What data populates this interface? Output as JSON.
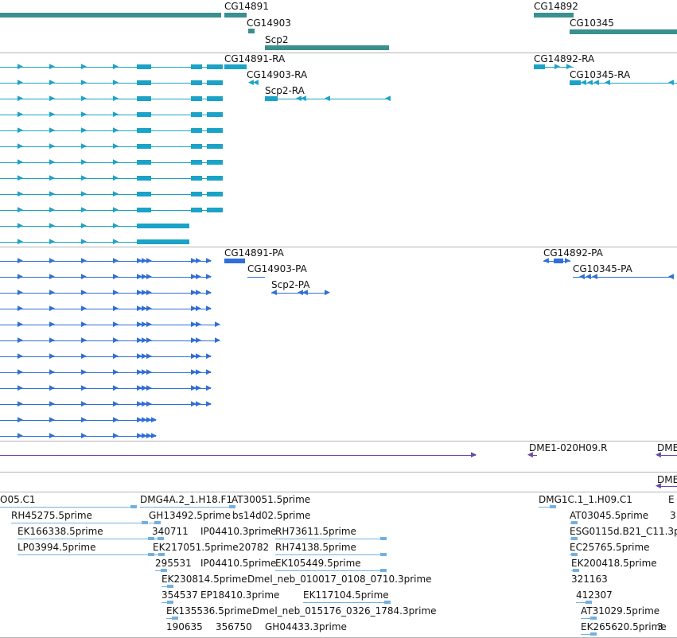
{
  "colors": {
    "gene": "#3a8f8f",
    "rna": "#1aa3c6",
    "protein": "#2f6fd6",
    "clone": "#6a4aa8",
    "est": "#74b0df",
    "separator": "#b5b5b5"
  },
  "tracks": {
    "genes": [
      {
        "label": ""
      },
      {
        "label": "CG14891"
      },
      {
        "label": "CG14903"
      },
      {
        "label": "Scp2"
      },
      {
        "label": "CG14892"
      },
      {
        "label": "CG10345"
      }
    ],
    "transcripts": [
      {
        "label": "CG14891-RA"
      },
      {
        "label": "CG14903-RA"
      },
      {
        "label": "Scp2-RA"
      },
      {
        "label": "CG14892-RA"
      },
      {
        "label": "CG10345-RA"
      }
    ],
    "proteins": [
      {
        "label": "CG14891-PA"
      },
      {
        "label": "CG14903-PA"
      },
      {
        "label": "Scp2-PA"
      },
      {
        "label": "CG14892-PA"
      },
      {
        "label": "CG10345-PA"
      }
    ],
    "clones": [
      {
        "label": "DME1-020H09.R"
      },
      {
        "label": "DME"
      },
      {
        "label": "DME"
      }
    ],
    "ests": [
      {
        "label": "O05.C1"
      },
      {
        "label": "DMG4A.2_1.H18.F1"
      },
      {
        "label": "AT30051.5prime"
      },
      {
        "label": "RH45275.5prime"
      },
      {
        "label": "GH13492.5prime"
      },
      {
        "label": "bs14d02.5prime"
      },
      {
        "label": "EK166338.5prime"
      },
      {
        "label": "340711"
      },
      {
        "label": "IP04410.3prime"
      },
      {
        "label": "RH73611.5prime"
      },
      {
        "label": "LP03994.5prime"
      },
      {
        "label": "EK217051.5prime"
      },
      {
        "label": "20782"
      },
      {
        "label": "RH74138.5prime"
      },
      {
        "label": "295531"
      },
      {
        "label": "IP04410.5prime"
      },
      {
        "label": "EK105449.5prime"
      },
      {
        "label": "EK230814.5prime"
      },
      {
        "label": "Dmel_neb_010017_0108_0710.3prime"
      },
      {
        "label": "354537"
      },
      {
        "label": "EP18410.3prime"
      },
      {
        "label": "EK117104.5prime"
      },
      {
        "label": "EK135536.5prime"
      },
      {
        "label": "Dmel_neb_015176_0326_1784.3prime"
      },
      {
        "label": "190635"
      },
      {
        "label": "356750"
      },
      {
        "label": "GH04433.3prime"
      },
      {
        "label": "DMG1C.1_1.H09.C1"
      },
      {
        "label": "E"
      },
      {
        "label": "AT03045.5prime"
      },
      {
        "label": "3"
      },
      {
        "label": "ESG0115d.B21_C11.3p"
      },
      {
        "label": "EC25765.5prime"
      },
      {
        "label": "EK200418.5prime"
      },
      {
        "label": "321163"
      },
      {
        "label": "412307"
      },
      {
        "label": "AT31029.5prime"
      },
      {
        "label": "EK265620.5prime"
      },
      {
        "label": "3"
      }
    ]
  }
}
